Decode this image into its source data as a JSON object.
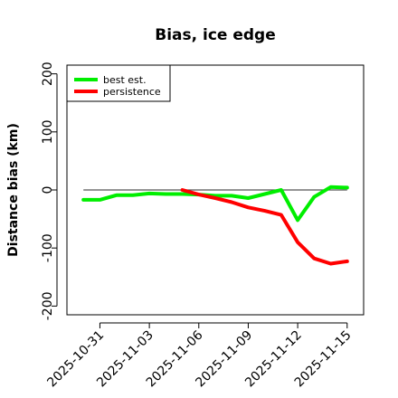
{
  "chart_data": {
    "type": "line",
    "title": "Bias, ice edge",
    "xlabel": "",
    "ylabel": "Distance bias (km)",
    "x_ticks": [
      "2025-10-31",
      "2025-11-03",
      "2025-11-06",
      "2025-11-09",
      "2025-11-12",
      "2025-11-15"
    ],
    "y_ticks": [
      "-200",
      "-100",
      "0",
      "100",
      "200"
    ],
    "xlim": [
      "2025-10-29",
      "2025-11-16"
    ],
    "ylim": [
      -215,
      215
    ],
    "reference_line": {
      "y": 0,
      "from": "2025-10-30",
      "to": "2025-11-15",
      "color": "#555555"
    },
    "legend": {
      "position": "top-left"
    },
    "series": [
      {
        "name": "best est.",
        "color": "#00ee00",
        "points": [
          [
            "2025-10-30",
            -17
          ],
          [
            "2025-10-31",
            -17
          ],
          [
            "2025-11-01",
            -9
          ],
          [
            "2025-11-02",
            -9
          ],
          [
            "2025-11-03",
            -6
          ],
          [
            "2025-11-04",
            -7
          ],
          [
            "2025-11-05",
            -7
          ],
          [
            "2025-11-06",
            -8
          ],
          [
            "2025-11-07",
            -10
          ],
          [
            "2025-11-08",
            -10
          ],
          [
            "2025-11-09",
            -14
          ],
          [
            "2025-11-10",
            -7
          ],
          [
            "2025-11-11",
            0
          ],
          [
            "2025-11-12",
            -52
          ],
          [
            "2025-11-13",
            -12
          ],
          [
            "2025-11-14",
            5
          ],
          [
            "2025-11-15",
            4
          ]
        ]
      },
      {
        "name": "persistence",
        "color": "#ff0000",
        "points": [
          [
            "2025-11-05",
            0
          ],
          [
            "2025-11-06",
            -8
          ],
          [
            "2025-11-07",
            -14
          ],
          [
            "2025-11-08",
            -21
          ],
          [
            "2025-11-09",
            -30
          ],
          [
            "2025-11-10",
            -36
          ],
          [
            "2025-11-11",
            -43
          ],
          [
            "2025-11-12",
            -90
          ],
          [
            "2025-11-13",
            -118
          ],
          [
            "2025-11-14",
            -127
          ],
          [
            "2025-11-15",
            -123
          ]
        ]
      }
    ]
  }
}
